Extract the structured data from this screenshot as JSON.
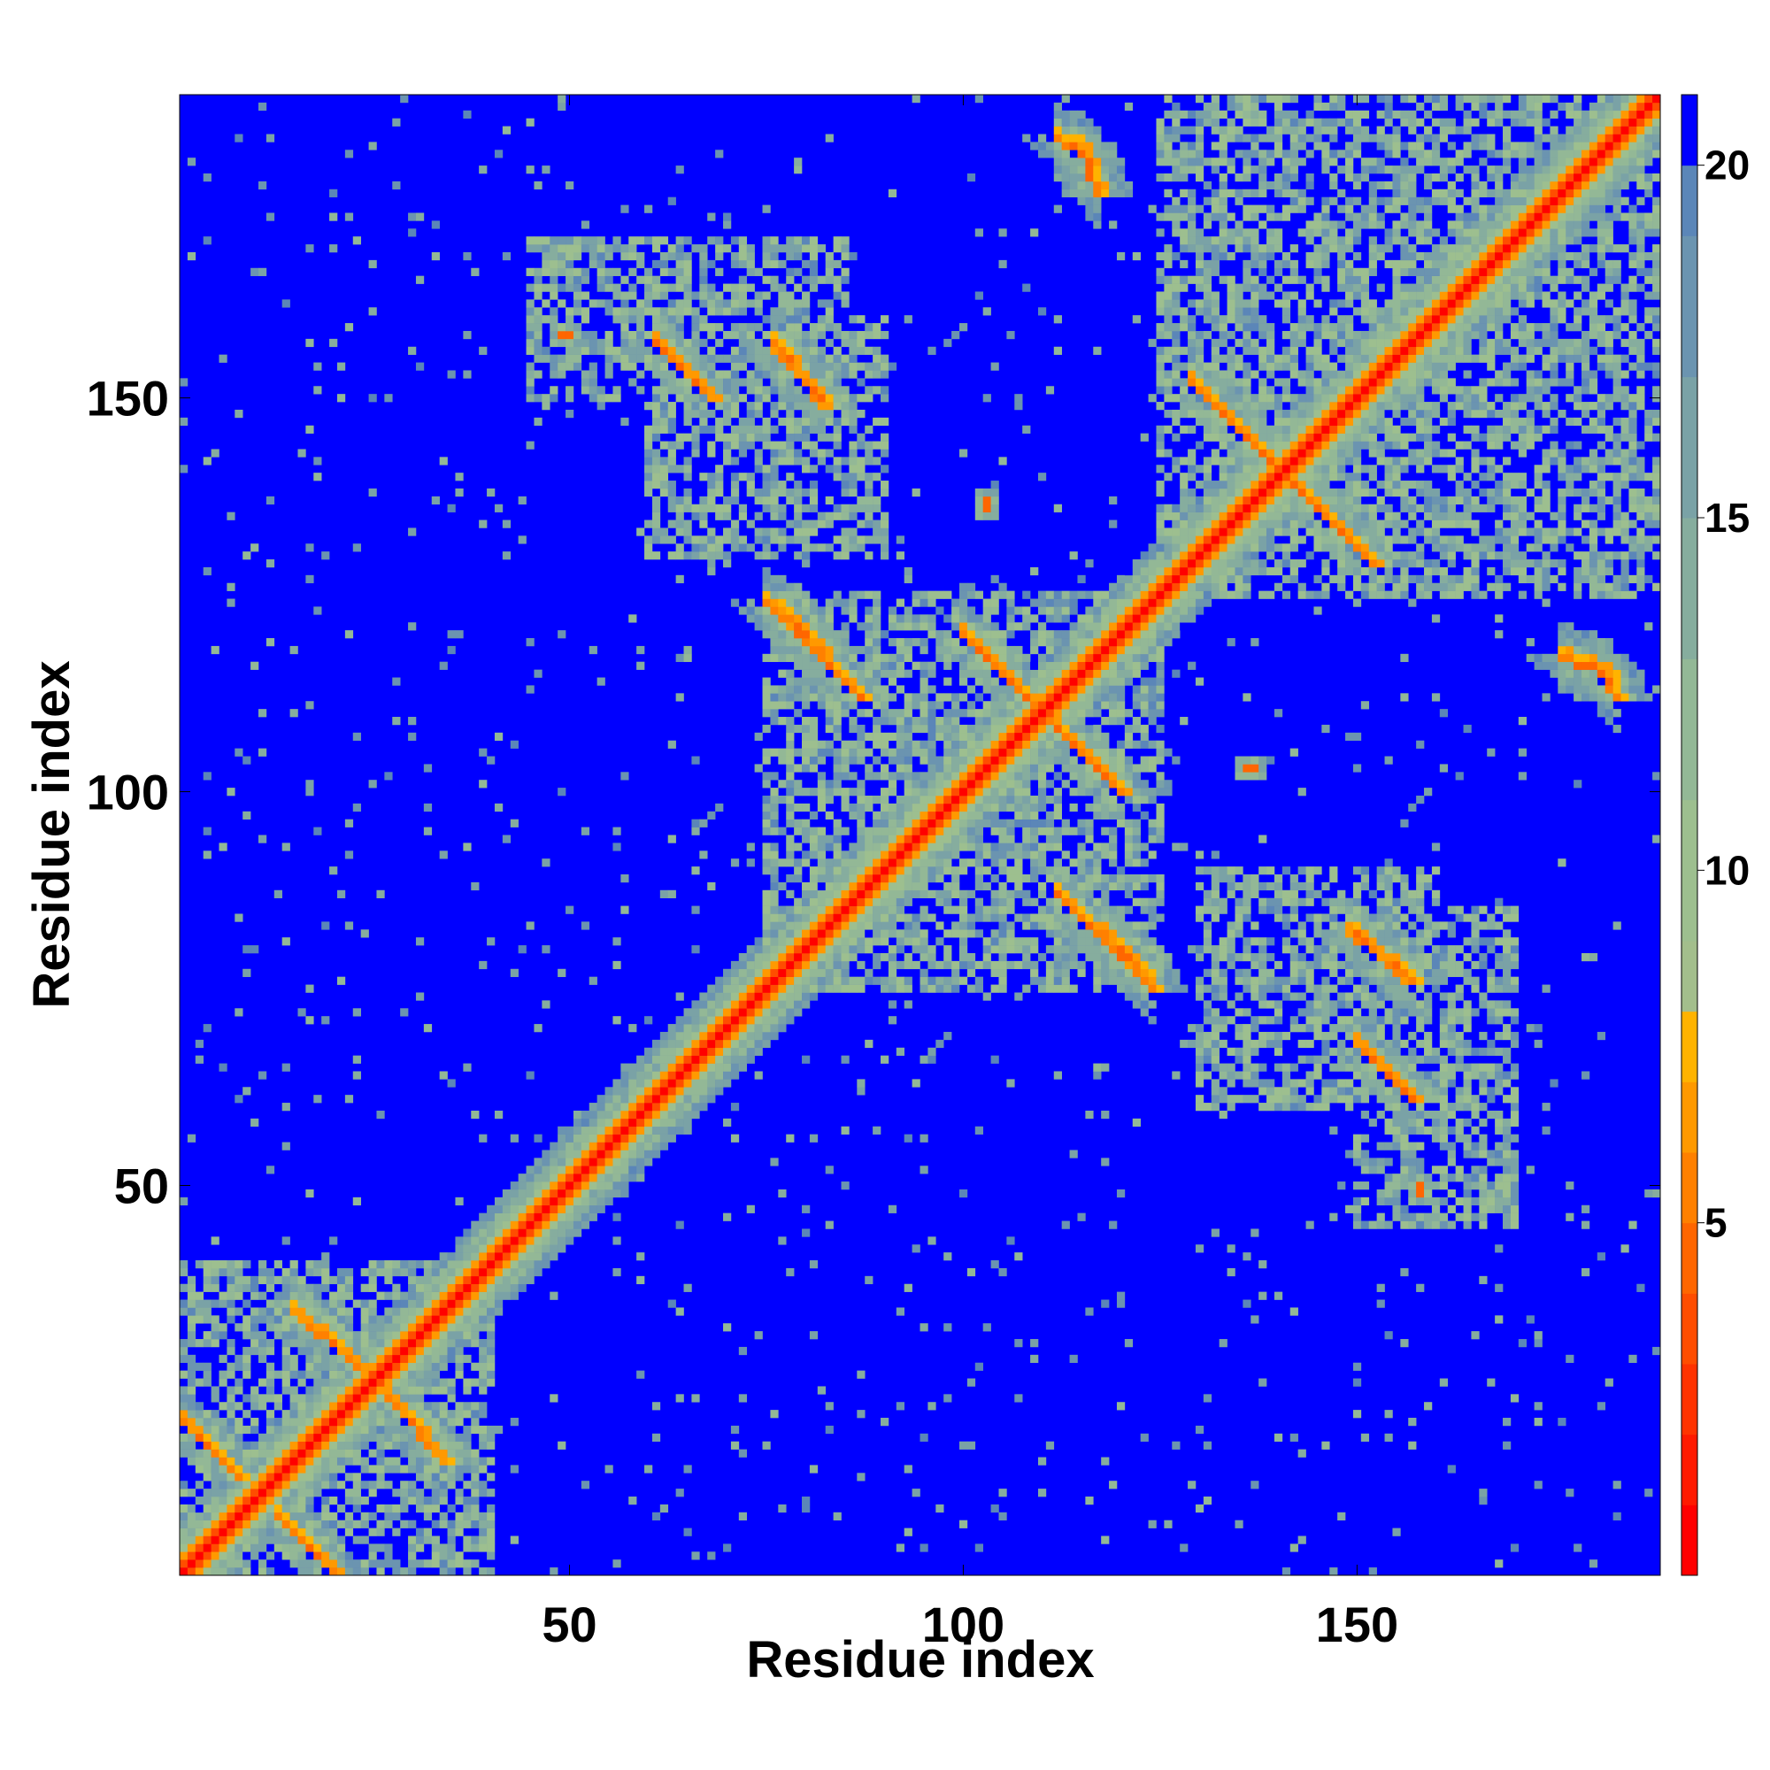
{
  "chart_data": {
    "type": "heatmap",
    "title": "",
    "xlabel": "Residue index",
    "ylabel": "Residue index",
    "n_residues": 188,
    "xlim": [
      1,
      188
    ],
    "ylim": [
      1,
      188
    ],
    "x_ticks": [
      50,
      100,
      150
    ],
    "y_ticks": [
      50,
      100,
      150
    ],
    "colorbar": {
      "range": [
        0,
        21
      ],
      "ticks": [
        5,
        10,
        15,
        20
      ],
      "levels": [
        {
          "max": 1,
          "color": "#ff0000"
        },
        {
          "max": 2,
          "color": "#ff1a00"
        },
        {
          "max": 3,
          "color": "#ff3300"
        },
        {
          "max": 4,
          "color": "#ff4d00"
        },
        {
          "max": 5,
          "color": "#ff6600"
        },
        {
          "max": 6,
          "color": "#ff8000"
        },
        {
          "max": 7,
          "color": "#ff9900"
        },
        {
          "max": 8,
          "color": "#ffb300"
        },
        {
          "max": 9,
          "color": "#a3be8c"
        },
        {
          "max": 11,
          "color": "#9dbf8f"
        },
        {
          "max": 13,
          "color": "#93b896"
        },
        {
          "max": 15,
          "color": "#86ad9e"
        },
        {
          "max": 17,
          "color": "#7aa2a6"
        },
        {
          "max": 19,
          "color": "#6b94b0"
        },
        {
          "max": 20,
          "color": "#5b86b8"
        },
        {
          "max": 21,
          "color": "#0000ff"
        }
      ]
    },
    "secondary_contacts": [
      {
        "kind": "antiparallel",
        "i_start": 15,
        "i_end": 23,
        "j_start": 34,
        "j_end": 27
      },
      {
        "kind": "antiparallel",
        "i_start": 1,
        "i_end": 8,
        "j_start": 20,
        "j_end": 13
      },
      {
        "kind": "antiparallel",
        "i_start": 61,
        "i_end": 67,
        "j_start": 157,
        "j_end": 151
      },
      {
        "kind": "antiparallel",
        "i_start": 76,
        "i_end": 82,
        "j_start": 156,
        "j_end": 150
      },
      {
        "kind": "antiparallel",
        "i_start": 75,
        "i_end": 85,
        "j_start": 124,
        "j_end": 114
      },
      {
        "kind": "antiparallel",
        "i_start": 100,
        "i_end": 118,
        "j_start": 120,
        "j_end": 102
      },
      {
        "kind": "antiparallel",
        "i_start": 112,
        "i_end": 123,
        "j_start": 87,
        "j_end": 77
      },
      {
        "kind": "antiparallel",
        "i_start": 129,
        "i_end": 150,
        "j_start": 152,
        "j_end": 131
      },
      {
        "kind": "antiparallel",
        "i_start": 149,
        "i_end": 157,
        "j_start": 82,
        "j_end": 76
      },
      {
        "kind": "antiparallel",
        "i_start": 150,
        "i_end": 157,
        "j_start": 68,
        "j_end": 61
      },
      {
        "kind": "antiparallel",
        "i_start": 112,
        "i_end": 116,
        "j_start": 183,
        "j_end": 180
      },
      {
        "kind": "antiparallel",
        "i_start": 176,
        "i_end": 182,
        "j_start": 117,
        "j_end": 115
      },
      {
        "kind": "point",
        "i": 49,
        "j": 158
      },
      {
        "kind": "point",
        "i": 158,
        "j": 50
      },
      {
        "kind": "point",
        "i": 103,
        "j": 137
      },
      {
        "kind": "point",
        "i": 136,
        "j": 103
      }
    ],
    "dense_regions": [
      {
        "i": [
          1,
          40
        ],
        "j": [
          1,
          40
        ]
      },
      {
        "i": [
          75,
          125
        ],
        "j": [
          75,
          125
        ]
      },
      {
        "i": [
          125,
          188
        ],
        "j": [
          125,
          188
        ]
      },
      {
        "i": [
          150,
          170
        ],
        "j": [
          45,
          85
        ]
      },
      {
        "i": [
          45,
          85
        ],
        "j": [
          150,
          170
        ]
      },
      {
        "i": [
          60,
          90
        ],
        "j": [
          130,
          160
        ]
      },
      {
        "i": [
          130,
          160
        ],
        "j": [
          60,
          90
        ]
      }
    ]
  }
}
